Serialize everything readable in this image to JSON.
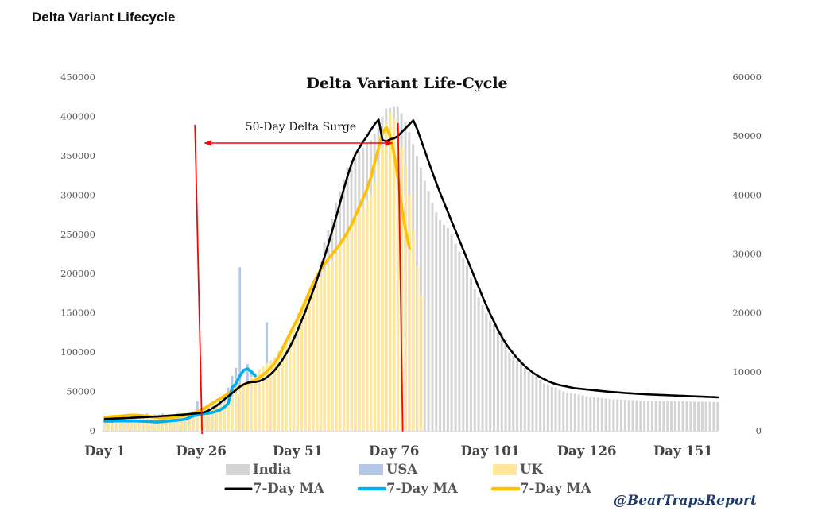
{
  "page_title": "Delta Variant Lifecycle",
  "credit": "@BearTrapsReport",
  "colors": {
    "india_bar": "#d4d4d4",
    "usa_bar": "#b4c7e7",
    "uk_bar": "#ffe699",
    "india_ma": "#000000",
    "usa_ma": "#00b0f0",
    "uk_ma": "#ffc000",
    "annotation": "#ff0000"
  },
  "chart_data": {
    "type": "bar",
    "title": "Delta Variant Life-Cycle",
    "x_tick_labels": [
      "Day 1",
      "Day 26",
      "Day 51",
      "Day 76",
      "Day 101",
      "Day 126",
      "Day 151"
    ],
    "x_ticks": [
      1,
      26,
      51,
      76,
      101,
      126,
      151
    ],
    "xlim": [
      1,
      160
    ],
    "y_left": {
      "ylim": [
        0,
        450000
      ],
      "tick_labels": [
        "0",
        "50000",
        "100000",
        "150000",
        "200000",
        "250000",
        "300000",
        "350000",
        "400000",
        "450000"
      ]
    },
    "y_right": {
      "ylim": [
        0,
        60000
      ],
      "tick_labels": [
        "0",
        "10000",
        "20000",
        "30000",
        "40000",
        "50000",
        "60000"
      ]
    },
    "annotation": {
      "text": "50-Day Delta Surge",
      "from_day": 26,
      "to_day": 76
    },
    "legend": {
      "placement": "bottom",
      "entries": [
        {
          "label": "India",
          "kind": "bar",
          "color": "#d4d4d4"
        },
        {
          "label": "USA",
          "kind": "bar",
          "color": "#b4c7e7"
        },
        {
          "label": "UK",
          "kind": "bar",
          "color": "#ffe699"
        },
        {
          "label": "7-Day MA",
          "kind": "line",
          "color": "#000000"
        },
        {
          "label": "7-Day MA",
          "kind": "line",
          "color": "#00b0f0"
        },
        {
          "label": "7-Day MA",
          "kind": "line",
          "color": "#ffc000"
        }
      ]
    },
    "series": [
      {
        "name": "India",
        "type": "bar",
        "axis": "left",
        "start_day": 1,
        "values": [
          17000,
          18000,
          16000,
          19000,
          17000,
          18500,
          20000,
          19000,
          21000,
          18000,
          20000,
          22000,
          19000,
          21000,
          20500,
          22000,
          18000,
          21000,
          19000,
          23000,
          20000,
          22000,
          24000,
          21000,
          23000,
          25000,
          27000,
          26000,
          29000,
          31000,
          33000,
          35000,
          37000,
          39000,
          41000,
          44000,
          47000,
          50000,
          53000,
          56000,
          59000,
          62000,
          62000,
          68000,
          72000,
          76000,
          81000,
          89000,
          100000,
          110000,
          125000,
          138000,
          150000,
          165000,
          180000,
          195000,
          215000,
          240000,
          255000,
          270000,
          290000,
          305000,
          320000,
          335000,
          345000,
          350000,
          355000,
          360000,
          365000,
          370000,
          378000,
          385000,
          400000,
          410000,
          411000,
          412000,
          412000,
          404000,
          393000,
          380000,
          365000,
          350000,
          335000,
          318000,
          305000,
          290000,
          278000,
          268000,
          262000,
          258000,
          250000,
          238000,
          228000,
          220000,
          210000,
          195000,
          180000,
          170000,
          160000,
          150000,
          140000,
          135000,
          130000,
          125000,
          115000,
          100000,
          95000,
          90000,
          88000,
          80000,
          75000,
          72000,
          70000,
          65000,
          60000,
          58000,
          56000,
          55000,
          52000,
          50000,
          49000,
          48000,
          47000,
          46000,
          45000,
          44000,
          43000,
          42500,
          42000,
          41500,
          41000,
          40500,
          40000,
          39800,
          39500,
          39300,
          39000,
          39000,
          38800,
          38600,
          38500,
          38400,
          38300,
          38200,
          38000,
          38000,
          37800,
          37600,
          37500,
          37500,
          37400,
          37300,
          37200,
          37100,
          37000,
          37000,
          36900,
          36800,
          36700,
          36500
        ]
      },
      {
        "name": "USA",
        "type": "bar",
        "axis": "left",
        "start_day": 1,
        "values": [
          13000,
          12500,
          12000,
          13000,
          12500,
          13000,
          12000,
          13500,
          12500,
          12000,
          13000,
          12000,
          14000,
          12000,
          13500,
          12000,
          15000,
          14000,
          16000,
          18000,
          20000,
          22000,
          24000,
          25000,
          38000,
          27000,
          29000,
          30000,
          32000,
          35000,
          38000,
          42000,
          55000,
          70000,
          80000,
          208000,
          60000,
          85000,
          75000,
          50000,
          60000,
          70000,
          138000
        ]
      },
      {
        "name": "UK",
        "type": "bar",
        "axis": "right",
        "start_day": 1,
        "values": [
          2300,
          2100,
          2500,
          2200,
          2400,
          2300,
          2600,
          2200,
          2400,
          2300,
          2700,
          2500,
          2300,
          2500,
          2600,
          2400,
          2300,
          2700,
          2500,
          2900,
          2700,
          3000,
          3200,
          2900,
          3100,
          3300,
          3500,
          3700,
          3900,
          4100,
          4300,
          4800,
          5200,
          5800,
          6500,
          7200,
          7800,
          8500,
          9200,
          9800,
          10500,
          11000,
          11500,
          12000,
          12500,
          13500,
          14500,
          15500,
          17000,
          18500,
          20000,
          21000,
          22000,
          23000,
          24000,
          25000,
          26000,
          27000,
          28000,
          29000,
          30000,
          31500,
          33000,
          34000,
          35000,
          36000,
          37000,
          38000,
          39000,
          40000,
          42000,
          45000,
          48000,
          52000,
          54000,
          53000,
          51000,
          48000,
          45000,
          40000,
          34000,
          28000,
          23000
        ]
      }
    ],
    "moving_averages": [
      {
        "name": "7-Day MA",
        "of": "India",
        "axis": "left",
        "start_day": 1,
        "values": [
          15000,
          15200,
          15400,
          15600,
          15800,
          16000,
          16200,
          16500,
          16800,
          17000,
          17200,
          17500,
          17800,
          18000,
          18300,
          18700,
          19000,
          19300,
          19700,
          20000,
          20400,
          20800,
          21200,
          21700,
          22200,
          22800,
          24000,
          26000,
          29000,
          32000,
          36000,
          40000,
          44000,
          48000,
          52000,
          56000,
          59000,
          61000,
          62000,
          62000,
          63000,
          65000,
          68000,
          72000,
          77000,
          83000,
          90000,
          98000,
          107000,
          117000,
          128000,
          140000,
          152000,
          165000,
          178000,
          192000,
          207000,
          222000,
          238000,
          255000,
          272000,
          290000,
          308000,
          325000,
          340000,
          352000,
          360000,
          368000,
          375000,
          383000,
          390000,
          396000,
          370000,
          368000,
          371000,
          372000,
          375000,
          380000,
          385000,
          390000,
          395000,
          384000,
          370000,
          356000,
          342000,
          328000,
          315000,
          302000,
          290000,
          278000,
          266000,
          254000,
          242000,
          230000,
          218000,
          206000,
          194000,
          182000,
          170000,
          159000,
          148000,
          138000,
          128000,
          119000,
          111000,
          104000,
          98000,
          92000,
          87000,
          82000,
          78000,
          74000,
          71000,
          68000,
          65500,
          63000,
          61000,
          59500,
          58000,
          57000,
          56000,
          55000,
          54000,
          53500,
          53000,
          52500,
          52000,
          51500,
          51000,
          50500,
          50000,
          49600,
          49200,
          48800,
          48400,
          48000,
          47700,
          47400,
          47100,
          46800,
          46500,
          46200,
          46000,
          45800,
          45600,
          45400,
          45200,
          45000,
          44800,
          44600,
          44400,
          44200,
          44000,
          43800,
          43600,
          43400,
          43200,
          43000,
          42800,
          42600
        ]
      },
      {
        "name": "7-Day MA",
        "of": "USA",
        "axis": "left",
        "start_day": 1,
        "values": [
          12000,
          12300,
          12000,
          12500,
          12400,
          12500,
          12300,
          12500,
          12400,
          12200,
          12000,
          11800,
          11500,
          11000,
          11200,
          11500,
          12000,
          12500,
          13000,
          13500,
          14000,
          15000,
          17000,
          19000,
          20000,
          21000,
          22000,
          22500,
          23500,
          25000,
          27000,
          30000,
          35000,
          55000,
          60000,
          70000,
          77000,
          79000,
          75000,
          70000
        ]
      },
      {
        "name": "7-Day MA",
        "of": "UK",
        "axis": "right",
        "start_day": 1,
        "values": [
          2300,
          2350,
          2400,
          2450,
          2500,
          2550,
          2600,
          2650,
          2650,
          2600,
          2550,
          2500,
          2400,
          2300,
          2200,
          2150,
          2150,
          2200,
          2300,
          2400,
          2500,
          2650,
          2800,
          3000,
          3250,
          3550,
          3900,
          4300,
          4700,
          5100,
          5500,
          5900,
          6300,
          6700,
          7100,
          7500,
          7800,
          8100,
          8300,
          8600,
          9000,
          9500,
          10000,
          10700,
          11500,
          12500,
          13800,
          15200,
          16500,
          17800,
          19000,
          20500,
          22000,
          23500,
          25000,
          26200,
          27300,
          28300,
          29200,
          30000,
          30800,
          31700,
          32700,
          33800,
          35000,
          36500,
          38000,
          39500,
          41000,
          43000,
          45500,
          48000,
          50500,
          51500,
          50000,
          47000,
          43000,
          38000,
          34000,
          31000
        ]
      }
    ]
  }
}
